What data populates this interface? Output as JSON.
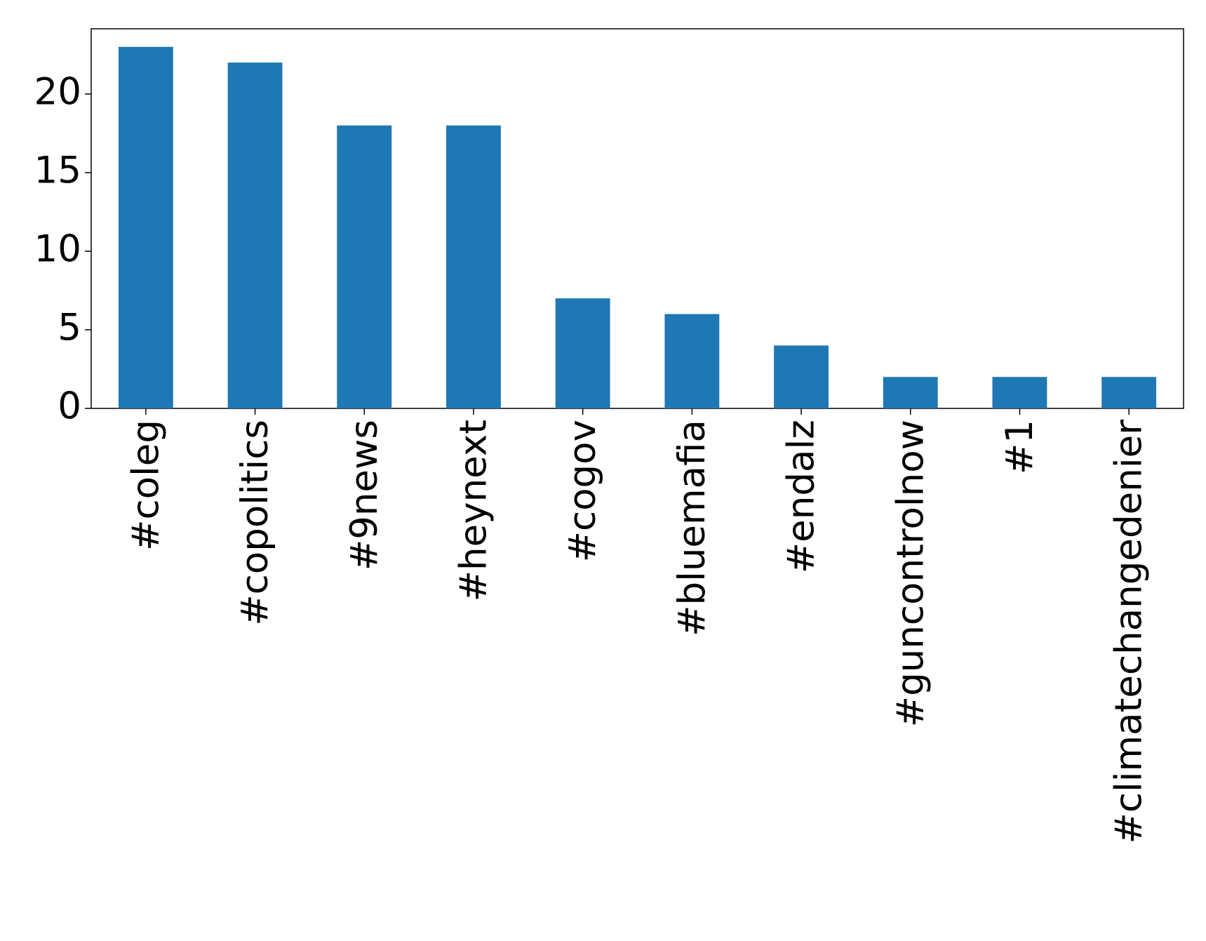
{
  "chart_data": {
    "type": "bar",
    "categories": [
      "#coleg",
      "#copolitics",
      "#9news",
      "#heynext",
      "#cogov",
      "#bluemafia",
      "#endalz",
      "#guncontrolnow",
      "#1",
      "#climatechangedenier"
    ],
    "values": [
      23,
      22,
      18,
      18,
      7,
      6,
      4,
      2,
      2,
      2
    ],
    "color": "#1f77b4",
    "ylim": [
      0,
      24.15
    ],
    "yticks": [
      0,
      5,
      10,
      15,
      20
    ],
    "grid": false
  }
}
